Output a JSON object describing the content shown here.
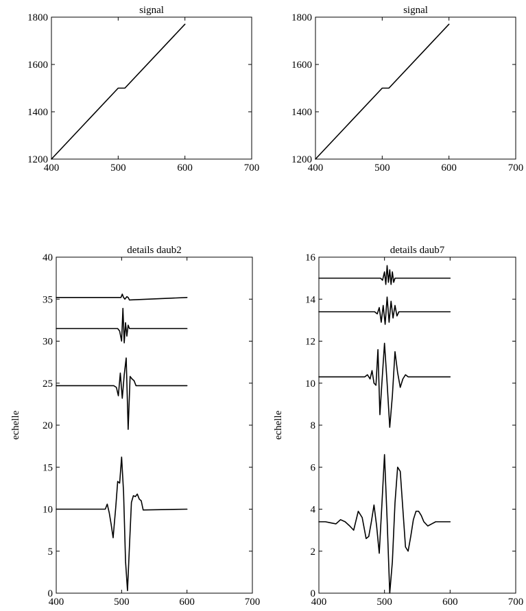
{
  "chart_data": [
    {
      "id": "top-left",
      "type": "line",
      "title": "signal",
      "xlabel": "",
      "ylabel": "",
      "xlim": [
        400,
        700
      ],
      "ylim": [
        1200,
        1800
      ],
      "xticks": [
        400,
        500,
        600,
        700
      ],
      "yticks": [
        1200,
        1400,
        1600,
        1800
      ],
      "grid": false,
      "series": [
        {
          "x": [
            400,
            500,
            510,
            600
          ],
          "y": [
            1200,
            1500,
            1500,
            1770
          ]
        }
      ]
    },
    {
      "id": "top-right",
      "type": "line",
      "title": "signal",
      "xlabel": "",
      "ylabel": "",
      "xlim": [
        400,
        700
      ],
      "ylim": [
        1200,
        1800
      ],
      "xticks": [
        400,
        500,
        600,
        700
      ],
      "yticks": [
        1200,
        1400,
        1600,
        1800
      ],
      "grid": false,
      "series": [
        {
          "x": [
            400,
            500,
            510,
            600
          ],
          "y": [
            1200,
            1500,
            1500,
            1770
          ]
        }
      ]
    },
    {
      "id": "bottom-left",
      "type": "line",
      "title": "details daub2",
      "xlabel": "",
      "ylabel": "echelle",
      "xlim": [
        400,
        700
      ],
      "ylim": [
        0,
        40
      ],
      "xticks": [
        400,
        500,
        600,
        700
      ],
      "yticks": [
        0,
        5,
        10,
        15,
        20,
        25,
        30,
        35,
        40
      ],
      "grid": false,
      "series": [
        {
          "x": [
            400,
            475,
            478,
            481,
            484,
            487,
            491,
            494,
            497,
            500,
            503,
            506,
            509,
            512,
            515,
            518,
            521,
            524,
            527,
            530,
            533,
            600
          ],
          "y": [
            10,
            10,
            10.6,
            9.6,
            8.2,
            6.6,
            10.2,
            13.3,
            13.1,
            16.2,
            12.0,
            3.8,
            0.3,
            5.6,
            10.8,
            11.6,
            11.5,
            11.8,
            11.2,
            11.0,
            9.9,
            10
          ]
        },
        {
          "x": [
            400,
            488,
            492,
            495,
            498,
            501,
            504,
            507,
            510,
            513,
            516,
            519,
            522,
            526,
            600
          ],
          "y": [
            24.7,
            24.7,
            24.5,
            23.5,
            26.2,
            23.2,
            26.0,
            28.0,
            19.5,
            25.8,
            25.5,
            25.3,
            24.7,
            24.7,
            24.7
          ]
        },
        {
          "x": [
            400,
            494,
            497,
            500,
            502,
            504,
            506,
            508,
            510,
            512,
            515,
            600
          ],
          "y": [
            31.5,
            31.5,
            31.2,
            30.0,
            33.9,
            29.8,
            32.2,
            30.6,
            31.9,
            31.5,
            31.5,
            31.5
          ]
        },
        {
          "x": [
            400,
            499,
            501,
            503,
            505,
            508,
            510,
            512,
            600
          ],
          "y": [
            35.2,
            35.2,
            35.6,
            35.2,
            35.0,
            35.3,
            35.2,
            34.9,
            35.2
          ]
        }
      ]
    },
    {
      "id": "bottom-right",
      "type": "line",
      "title": "details daub7",
      "xlabel": "",
      "ylabel": "echelle",
      "xlim": [
        400,
        700
      ],
      "ylim": [
        0,
        16
      ],
      "xticks": [
        400,
        500,
        600,
        700
      ],
      "yticks": [
        0,
        2,
        4,
        6,
        8,
        10,
        12,
        14,
        16
      ],
      "grid": false,
      "series": [
        {
          "x": [
            400,
            410,
            418,
            426,
            433,
            440,
            447,
            453,
            460,
            466,
            472,
            476,
            480,
            484,
            488,
            492,
            496,
            500,
            504,
            508,
            512,
            516,
            520,
            524,
            528,
            532,
            536,
            540,
            544,
            548,
            552,
            556,
            560,
            566,
            572,
            578,
            584,
            590,
            600
          ],
          "y": [
            3.4,
            3.4,
            3.35,
            3.3,
            3.5,
            3.4,
            3.2,
            3.0,
            3.9,
            3.6,
            2.6,
            2.7,
            3.4,
            4.2,
            3.2,
            1.9,
            4.2,
            6.6,
            3.5,
            0,
            1.5,
            4.3,
            6.0,
            5.8,
            4.0,
            2.2,
            2.0,
            2.7,
            3.5,
            3.9,
            3.9,
            3.7,
            3.4,
            3.2,
            3.3,
            3.4,
            3.4,
            3.4,
            3.4
          ]
        },
        {
          "x": [
            400,
            470,
            474,
            478,
            481,
            484,
            487,
            490,
            493,
            496,
            500,
            504,
            508,
            512,
            516,
            520,
            524,
            528,
            532,
            536,
            600
          ],
          "y": [
            10.3,
            10.3,
            10.4,
            10.2,
            10.6,
            10.0,
            9.9,
            11.6,
            8.5,
            10.0,
            11.9,
            10.0,
            7.9,
            9.4,
            11.5,
            10.5,
            9.8,
            10.2,
            10.4,
            10.3,
            10.3
          ]
        },
        {
          "x": [
            400,
            485,
            489,
            492,
            495,
            498,
            501,
            504,
            507,
            510,
            513,
            516,
            519,
            522,
            526,
            600
          ],
          "y": [
            13.4,
            13.4,
            13.3,
            13.6,
            12.9,
            13.7,
            12.8,
            14.1,
            12.9,
            13.9,
            13.1,
            13.7,
            13.2,
            13.4,
            13.4,
            13.4
          ]
        },
        {
          "x": [
            400,
            494,
            497,
            500,
            502,
            504,
            506,
            508,
            510,
            512,
            514,
            516,
            600
          ],
          "y": [
            15.0,
            15.0,
            14.9,
            15.3,
            14.7,
            15.6,
            14.8,
            15.4,
            14.7,
            15.3,
            14.8,
            15.0,
            15.0
          ]
        }
      ]
    }
  ]
}
